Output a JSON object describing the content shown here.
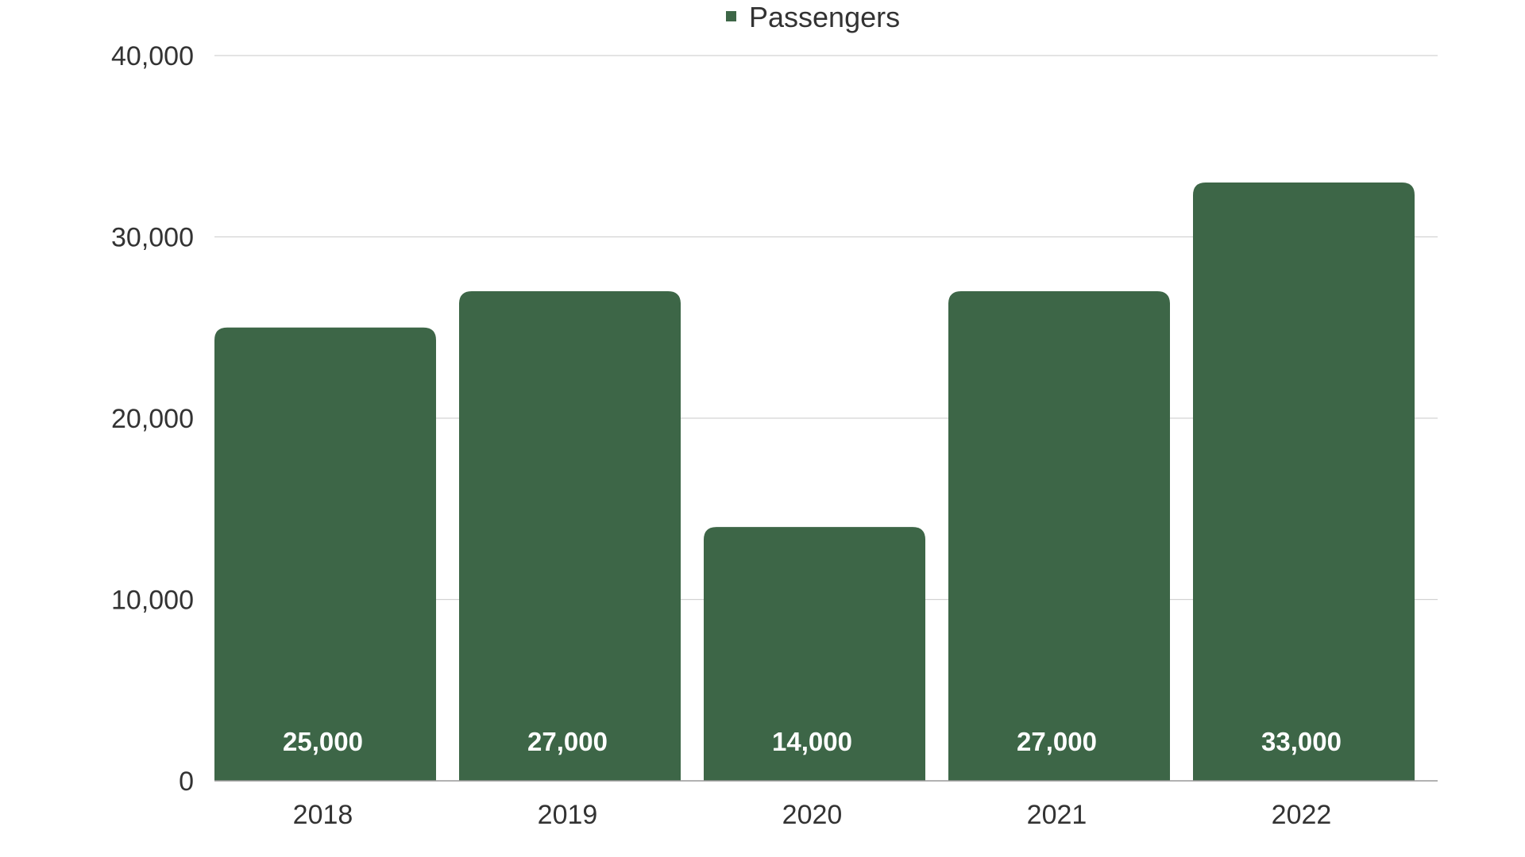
{
  "chart_data": {
    "type": "bar",
    "categories": [
      "2018",
      "2019",
      "2020",
      "2021",
      "2022"
    ],
    "series": [
      {
        "name": "Passengers",
        "values": [
          25000,
          27000,
          14000,
          27000,
          33000
        ],
        "data_labels": [
          "25,000",
          "27,000",
          "14,000",
          "27,000",
          "33,000"
        ],
        "color": "#3d6647"
      }
    ],
    "ylim": [
      0,
      40000
    ],
    "yticks": [
      0,
      10000,
      20000,
      30000,
      40000
    ],
    "ytick_labels": [
      "0",
      "10,000",
      "20,000",
      "30,000",
      "40,000"
    ],
    "grid": true,
    "legend_position": "top-center",
    "gridline_color": "#d3d3d3",
    "axis_color": "#999999"
  }
}
